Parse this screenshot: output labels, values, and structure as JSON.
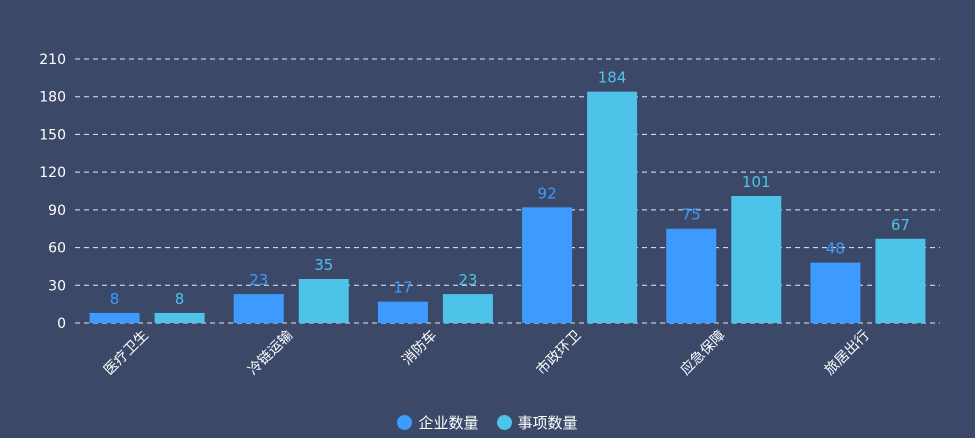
{
  "chart_data": {
    "type": "bar",
    "categories": [
      "医疗卫生",
      "冷链运输",
      "消防车",
      "市政环卫",
      "应急保障",
      "旅居出行"
    ],
    "series": [
      {
        "name": "企业数量",
        "values": [
          8,
          23,
          17,
          92,
          75,
          48
        ],
        "color": "#3d9bff"
      },
      {
        "name": "事项数量",
        "values": [
          8,
          35,
          23,
          184,
          101,
          67
        ],
        "color": "#4dc3ea"
      }
    ],
    "ylim": [
      0,
      210
    ],
    "yticks": [
      0,
      30,
      60,
      90,
      120,
      150,
      180,
      210
    ],
    "grid": true,
    "legend_position": "bottom",
    "title": "",
    "xlabel": "",
    "ylabel": ""
  }
}
